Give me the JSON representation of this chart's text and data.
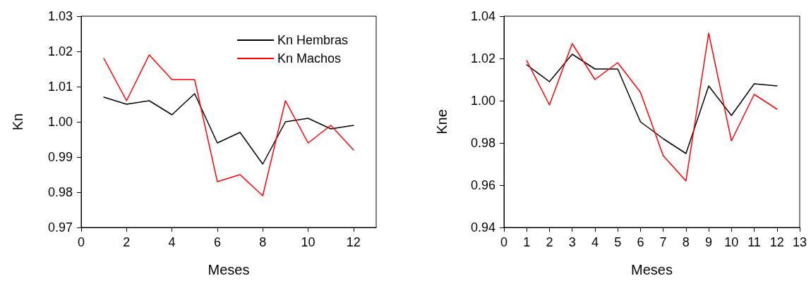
{
  "chart_data": [
    {
      "type": "line",
      "xlabel": "Meses",
      "ylabel": "Kn",
      "x": [
        1,
        2,
        3,
        4,
        5,
        6,
        7,
        8,
        9,
        10,
        11,
        12
      ],
      "xlim": [
        0,
        13
      ],
      "xticks": [
        0,
        2,
        4,
        6,
        8,
        10,
        12
      ],
      "ylim": [
        0.97,
        1.03
      ],
      "yticks": [
        0.97,
        0.98,
        0.99,
        {
          "value": 1,
          "label": "1.00"
        },
        1.01,
        1.02,
        1.03
      ],
      "grid": false,
      "legend": "top right",
      "marker": "none",
      "line_style": "solid",
      "series": [
        {
          "name": "Kn Hembras",
          "color": "#000000",
          "values": [
            1.007,
            1.005,
            1.006,
            1.002,
            1.008,
            0.994,
            0.997,
            0.988,
            1.0,
            1.001,
            0.998,
            0.999
          ]
        },
        {
          "name": "Kn Machos",
          "color": "#ff0000",
          "values": [
            1.018,
            1.006,
            1.019,
            1.012,
            1.012,
            0.983,
            0.985,
            0.979,
            1.006,
            0.994,
            0.999,
            0.992
          ]
        }
      ]
    },
    {
      "type": "line",
      "xlabel": "Meses",
      "ylabel": "Kne",
      "x": [
        1,
        2,
        3,
        4,
        5,
        6,
        7,
        8,
        9,
        10,
        11,
        12
      ],
      "xlim": [
        0,
        13
      ],
      "xticks": [
        0,
        1,
        2,
        3,
        4,
        5,
        6,
        7,
        8,
        9,
        10,
        11,
        12,
        13
      ],
      "ylim": [
        0.94,
        1.04
      ],
      "yticks": [
        0.94,
        0.96,
        0.98,
        {
          "value": 1,
          "label": "1.00"
        },
        1.02,
        1.04
      ],
      "grid": false,
      "legend": false,
      "marker": "none",
      "line_style": "solid",
      "series": [
        {
          "color": "#000000",
          "values": [
            1.017,
            1.009,
            1.022,
            1.015,
            1.015,
            0.99,
            0.982,
            0.975,
            1.007,
            0.993,
            1.008,
            1.007
          ]
        },
        {
          "color": "#ff0000",
          "values": [
            1.019,
            0.998,
            1.027,
            1.01,
            1.018,
            1.004,
            0.974,
            0.962,
            1.032,
            0.981,
            1.003,
            0.996
          ]
        }
      ]
    }
  ]
}
